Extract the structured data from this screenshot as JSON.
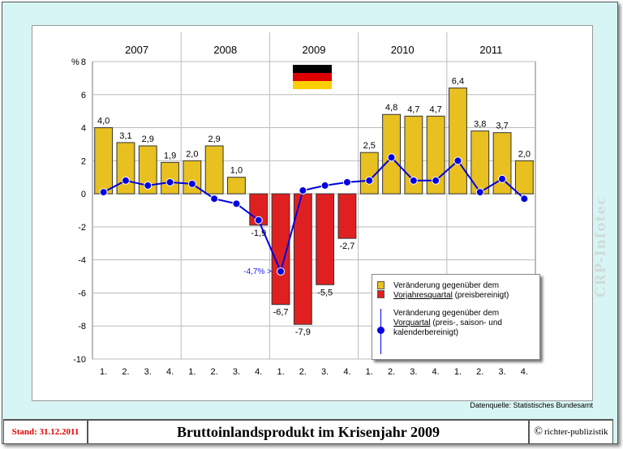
{
  "chart_data": {
    "type": "bar+line",
    "y_unit_label": "%",
    "ylim": [
      -10,
      8
    ],
    "yticks": [
      -10,
      -8,
      -6,
      -4,
      -2,
      0,
      2,
      4,
      6,
      8
    ],
    "years": [
      "2007",
      "2008",
      "2009",
      "2010",
      "2011"
    ],
    "categories": [
      "1.",
      "2.",
      "3.",
      "4.",
      "1.",
      "2.",
      "3.",
      "4.",
      "1.",
      "2.",
      "3.",
      "4.",
      "1.",
      "2.",
      "3.",
      "4.",
      "1.",
      "2.",
      "3.",
      "4."
    ],
    "series": [
      {
        "values": [
          4.0,
          3.1,
          2.9,
          1.9,
          2.0,
          2.9,
          1.0,
          -1.9,
          -6.7,
          -7.9,
          -5.5,
          -2.7,
          2.5,
          4.8,
          4.7,
          4.7,
          6.4,
          3.8,
          3.7,
          2.0
        ],
        "labels": [
          "4,0",
          "3,1",
          "2,9",
          "1,9",
          "2,0",
          "2,9",
          "1,0",
          "-1,9",
          "-6,7",
          "-7,9",
          "-5,5",
          "-2,7",
          "2,5",
          "4,8",
          "4,7",
          "4,7",
          "6,4",
          "3,8",
          "3,7",
          "2,0"
        ],
        "positive_color": "#e8c020",
        "negative_color": "#e02020"
      },
      {
        "values": [
          0.1,
          0.8,
          0.5,
          0.7,
          0.6,
          -0.3,
          -0.6,
          -1.6,
          -4.7,
          0.2,
          0.5,
          0.7,
          0.8,
          2.2,
          0.8,
          0.8,
          2.0,
          0.1,
          0.9,
          -0.3
        ],
        "color": "#0000e0"
      }
    ],
    "annotation": "-4,7% >",
    "grid": true
  },
  "legend": {
    "item1_line1": "Veränderung gegenüber dem",
    "item1_line2_underlined": "Vorjahresquartal",
    "item1_line2_rest": " (preisbereinigt)",
    "item2_line1": "Veränderung gegenüber dem",
    "item2_line2_underlined": "Vorquartal",
    "item2_line2_rest": " (preis-, saison- und",
    "item2_line3": "kalenderbereinigt)"
  },
  "source": "Datenquelle: Statistisches Bundesamt",
  "watermark": "CRP-Infotec",
  "footer": {
    "stand": "Stand: 31.12.2011",
    "title": "Bruttoinlandsprodukt im Krisenjahr 2009",
    "copyright": "richter-publizistik",
    "copyright_symbol": "©"
  },
  "flag": "germany-flag"
}
